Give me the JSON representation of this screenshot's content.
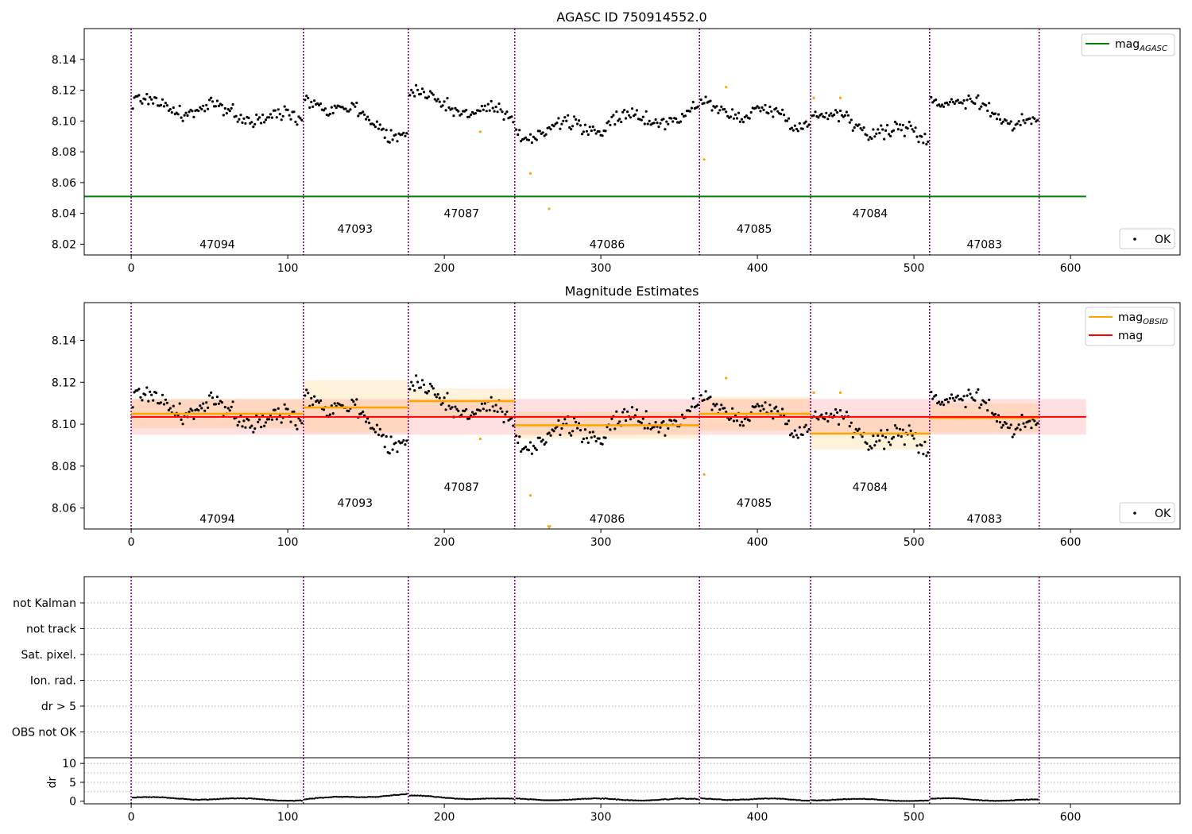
{
  "figure": {
    "panels": [
      {
        "id": "agasc",
        "title": "AGASC ID 750914552.0"
      },
      {
        "id": "estimates",
        "title": "Magnitude Estimates"
      },
      {
        "id": "flags",
        "title": ""
      },
      {
        "id": "dr",
        "title": ""
      }
    ]
  },
  "colors": {
    "points_ok": "#000000",
    "points_flagged": "#ffa500",
    "mag_agasc": "#008000",
    "mag_obsid": "#ffa500",
    "mag": "#ff0000",
    "obsid_boundary": "#800080",
    "axes": "#000000"
  },
  "chart_data": [
    {
      "type": "scatter",
      "title": "AGASC ID 750914552.0",
      "xlim": [
        -30,
        670
      ],
      "ylim": [
        8.013,
        8.16
      ],
      "xticks": [
        0,
        100,
        200,
        300,
        400,
        500,
        600
      ],
      "yticks": [
        8.02,
        8.04,
        8.06,
        8.08,
        8.1,
        8.12,
        8.14
      ],
      "ytick_labels": [
        "8.02",
        "8.04",
        "8.06",
        "8.08",
        "8.10",
        "8.12",
        "8.14"
      ],
      "grid": false,
      "legend": [
        {
          "label": "mag",
          "sub": "AGASC",
          "kind": "line",
          "color": "#008000",
          "loc": "upper right"
        },
        {
          "label": "OK",
          "kind": "marker",
          "color": "#000000",
          "loc": "lower right"
        }
      ],
      "hline": {
        "name": "mag_AGASC",
        "y": 8.051,
        "x": [
          -30,
          610
        ]
      },
      "obsid_boundaries": [
        0,
        110,
        177,
        245,
        363,
        434,
        510,
        580
      ],
      "obsid_labels": [
        {
          "text": "47094",
          "x": 55,
          "y": 8.02
        },
        {
          "text": "47093",
          "x": 143,
          "y": 8.03
        },
        {
          "text": "47087",
          "x": 211,
          "y": 8.04
        },
        {
          "text": "47086",
          "x": 304,
          "y": 8.02
        },
        {
          "text": "47085",
          "x": 398,
          "y": 8.03
        },
        {
          "text": "47084",
          "x": 472,
          "y": 8.04
        },
        {
          "text": "47083",
          "x": 545,
          "y": 8.02
        }
      ],
      "segment_trends": [
        [
          8.112,
          8.1
        ],
        [
          8.118,
          8.09
        ],
        [
          8.118,
          8.1
        ],
        [
          8.092,
          8.105
        ],
        [
          8.11,
          8.1
        ],
        [
          8.105,
          8.088
        ],
        [
          8.118,
          8.097
        ]
      ],
      "flagged_points": [
        [
          223,
          8.093
        ],
        [
          255,
          8.066
        ],
        [
          267,
          8.043
        ],
        [
          366,
          8.075
        ],
        [
          380,
          8.122
        ],
        [
          436,
          8.115
        ],
        [
          453,
          8.115
        ]
      ]
    },
    {
      "type": "scatter",
      "title": "Magnitude Estimates",
      "xlim": [
        -30,
        670
      ],
      "ylim": [
        8.05,
        8.158
      ],
      "xticks": [
        0,
        100,
        200,
        300,
        400,
        500,
        600
      ],
      "yticks": [
        8.06,
        8.08,
        8.1,
        8.12,
        8.14
      ],
      "ytick_labels": [
        "8.06",
        "8.08",
        "8.10",
        "8.12",
        "8.14"
      ],
      "grid": false,
      "legend": [
        {
          "label": "mag",
          "sub": "OBSID",
          "kind": "line",
          "color": "#ffa500",
          "loc": "upper right"
        },
        {
          "label": "mag",
          "kind": "line",
          "color": "#ff0000",
          "loc": "upper right"
        },
        {
          "label": "OK",
          "kind": "marker",
          "color": "#000000",
          "loc": "lower right"
        }
      ],
      "mag": {
        "value": 8.1035,
        "band": [
          8.095,
          8.112
        ],
        "x": [
          0,
          610
        ]
      },
      "obsid_estimates": [
        {
          "obsid": "47094",
          "x": [
            0,
            110
          ],
          "mean": 8.105,
          "band": [
            8.098,
            8.112
          ]
        },
        {
          "obsid": "47093",
          "x": [
            110,
            177
          ],
          "mean": 8.108,
          "band": [
            8.096,
            8.121
          ]
        },
        {
          "obsid": "47087",
          "x": [
            177,
            245
          ],
          "mean": 8.111,
          "band": [
            8.104,
            8.117
          ]
        },
        {
          "obsid": "47086",
          "x": [
            245,
            363
          ],
          "mean": 8.0995,
          "band": [
            8.093,
            8.106
          ]
        },
        {
          "obsid": "47085",
          "x": [
            363,
            434
          ],
          "mean": 8.105,
          "band": [
            8.097,
            8.113
          ]
        },
        {
          "obsid": "47084",
          "x": [
            434,
            510
          ],
          "mean": 8.0955,
          "band": [
            8.088,
            8.103
          ]
        },
        {
          "obsid": "47083",
          "x": [
            510,
            580
          ],
          "mean": 8.103,
          "band": [
            8.096,
            8.11
          ]
        }
      ],
      "obsid_boundaries": [
        0,
        110,
        177,
        245,
        363,
        434,
        510,
        580
      ],
      "obsid_labels": [
        {
          "text": "47094",
          "x": 55,
          "y": 8.055
        },
        {
          "text": "47093",
          "x": 143,
          "y": 8.0625
        },
        {
          "text": "47087",
          "x": 211,
          "y": 8.07
        },
        {
          "text": "47086",
          "x": 304,
          "y": 8.055
        },
        {
          "text": "47085",
          "x": 398,
          "y": 8.0625
        },
        {
          "text": "47084",
          "x": 472,
          "y": 8.07
        },
        {
          "text": "47083",
          "x": 545,
          "y": 8.055
        }
      ],
      "segment_trends": [
        [
          8.112,
          8.1
        ],
        [
          8.118,
          8.09
        ],
        [
          8.118,
          8.1
        ],
        [
          8.092,
          8.105
        ],
        [
          8.11,
          8.1
        ],
        [
          8.105,
          8.088
        ],
        [
          8.118,
          8.097
        ]
      ],
      "flagged_points": [
        [
          223,
          8.093
        ],
        [
          255,
          8.066
        ],
        [
          366,
          8.076
        ],
        [
          380,
          8.122
        ],
        [
          436,
          8.115
        ],
        [
          453,
          8.115
        ]
      ],
      "clipped_points": [
        [
          267,
          8.051
        ]
      ]
    },
    {
      "type": "scatter",
      "title": "",
      "xlim": [
        -30,
        670
      ],
      "categories": [
        "not Kalman",
        "not track",
        "Sat. pixel.",
        "Ion. rad.",
        "dr > 5",
        "OBS not OK"
      ],
      "grid": true,
      "obsid_boundaries": [
        0,
        110,
        177,
        245,
        363,
        434,
        510,
        580
      ],
      "flagged_counts": [
        0,
        0,
        0,
        0,
        0,
        0
      ]
    },
    {
      "type": "scatter",
      "title": "",
      "xlim": [
        -30,
        670
      ],
      "ylim": [
        -0.7,
        11.5
      ],
      "ylabel": "dr",
      "xticks": [
        0,
        100,
        200,
        300,
        400,
        500,
        600
      ],
      "yticks": [
        0,
        5,
        10
      ],
      "ytick_labels": [
        "0",
        "5",
        "10"
      ],
      "grid": true,
      "obsid_boundaries": [
        0,
        110,
        177,
        245,
        363,
        434,
        510,
        580
      ],
      "dr_segments": [
        [
          0.9,
          0.3
        ],
        [
          0.5,
          1.8
        ],
        [
          1.3,
          0.4
        ],
        [
          0.5,
          0.4
        ],
        [
          0.7,
          0.3
        ],
        [
          0.5,
          0.2
        ],
        [
          0.6,
          0.2
        ]
      ]
    }
  ]
}
